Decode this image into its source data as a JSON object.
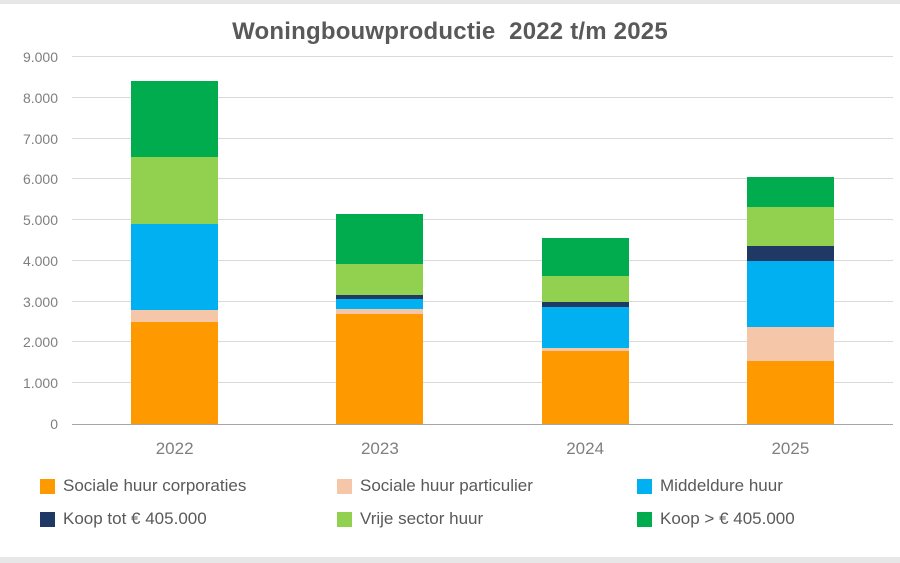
{
  "title": "Woningbouwproductie  2022 t/m 2025",
  "chart_data": {
    "type": "bar",
    "variant": "stacked-column",
    "title": "Woningbouwproductie  2022 t/m 2025",
    "categories": [
      "2022",
      "2023",
      "2024",
      "2025"
    ],
    "series": [
      {
        "name": "Sociale huur corporaties",
        "color": "#FF9900",
        "values": [
          2500,
          2700,
          1800,
          1550
        ]
      },
      {
        "name": "Sociale huur particulier",
        "color": "#F6C6A9",
        "values": [
          300,
          120,
          60,
          825
        ]
      },
      {
        "name": "Middeldure huur",
        "color": "#00B0F0",
        "values": [
          2100,
          250,
          1020,
          1625
        ]
      },
      {
        "name": "Koop tot € 405.000",
        "color": "#1F3864",
        "values": [
          0,
          100,
          100,
          375
        ]
      },
      {
        "name": "Vrije sector huur",
        "color": "#92D050",
        "values": [
          1650,
          750,
          660,
          950
        ]
      },
      {
        "name": "Koop > € 405.000",
        "color": "#00AC4E",
        "values": [
          1850,
          1230,
          910,
          725
        ]
      }
    ],
    "totals": [
      8400,
      5150,
      4550,
      6050
    ],
    "xlabel": "",
    "ylabel": "",
    "ylim": [
      0,
      9000
    ],
    "ytick_step": 1000,
    "ytick_labels": [
      "0",
      "1.000",
      "2.000",
      "3.000",
      "4.000",
      "5.000",
      "6.000",
      "7.000",
      "8.000",
      "9.000"
    ],
    "grid": true,
    "legend_position": "bottom",
    "legend_rows": [
      [
        "Sociale huur corporaties",
        "Sociale huur particulier",
        "Middeldure huur"
      ],
      [
        "Koop tot € 405.000",
        "Vrije sector huur",
        "Koop > € 405.000"
      ]
    ],
    "colors": {
      "title_text": "#595959",
      "axis_text": "#7F7F7F",
      "legend_text": "#595959",
      "gridline": "#D9D9D9",
      "axis_line": "#A6A6A6",
      "frame_band": "#E7E7E7",
      "background": "#FFFFFF"
    }
  }
}
